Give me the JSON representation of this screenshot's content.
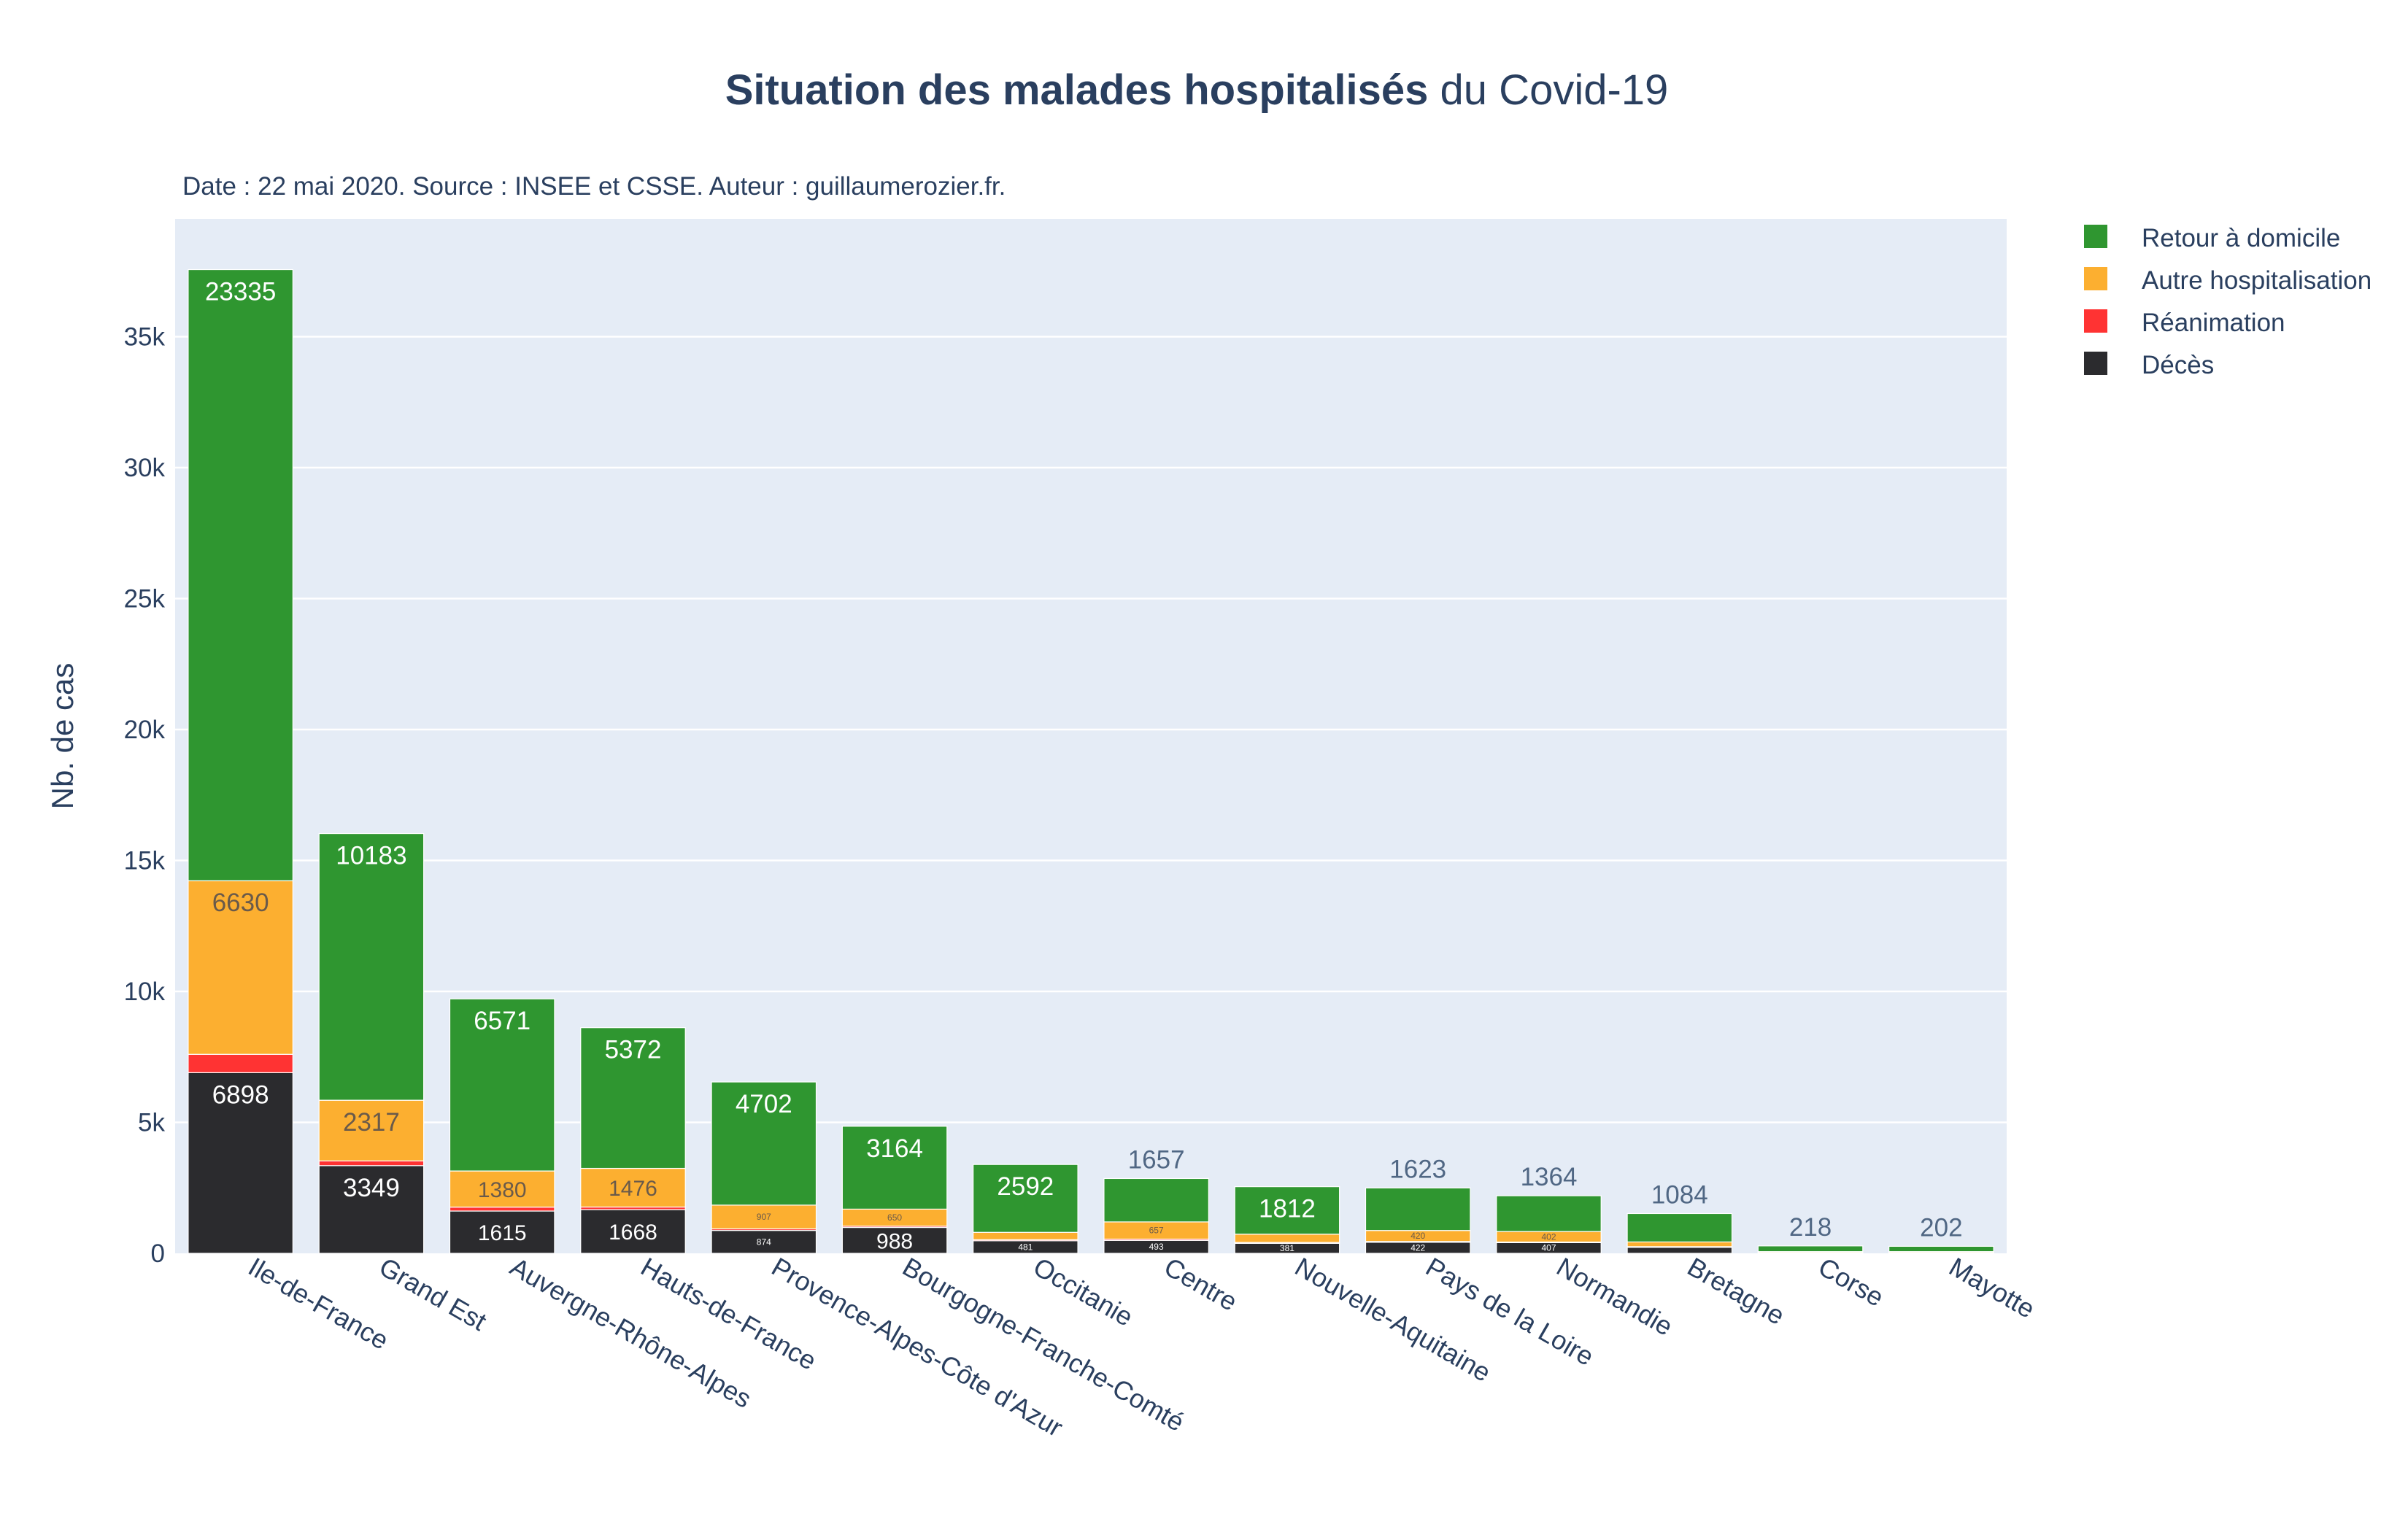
{
  "chart_data": {
    "type": "bar",
    "stacked": true,
    "title_bold": "Situation des malades hospitalisés",
    "title_rest": " du Covid-19",
    "subtitle": "Date : 22 mai 2020. Source : INSEE et CSSE. Auteur : guillaumerozier.fr.",
    "ylabel": "Nb. de cas",
    "xlabel": "",
    "ylim": [
      0,
      39500
    ],
    "yticks": [
      0,
      5000,
      10000,
      15000,
      20000,
      25000,
      30000,
      35000
    ],
    "ytick_labels": [
      "0",
      "5k",
      "10k",
      "15k",
      "20k",
      "25k",
      "30k",
      "35k"
    ],
    "grid": true,
    "legend_position": "top-right",
    "categories": [
      "Ile-de-France",
      "Grand Est",
      "Auvergne-Rhône-Alpes",
      "Hauts-de-France",
      "Provence-Alpes-Côte d'Azur",
      "Bourgogne-Franche-Comté",
      "Occitanie",
      "Centre",
      "Nouvelle-Aquitaine",
      "Pays de la Loire",
      "Normandie",
      "Bretagne",
      "Corse",
      "Mayotte"
    ],
    "series": [
      {
        "name": "Décès",
        "color": "#2b2b2e",
        "values": [
          6898,
          3349,
          1615,
          1668,
          874,
          988,
          481,
          493,
          381,
          422,
          407,
          230,
          20,
          20
        ]
      },
      {
        "name": "Réanimation",
        "color": "#ff3333",
        "values": [
          700,
          180,
          150,
          100,
          60,
          50,
          40,
          50,
          35,
          30,
          25,
          25,
          5,
          5
        ]
      },
      {
        "name": "Autre hospitalisation",
        "color": "#fcaf30",
        "values": [
          6630,
          2317,
          1380,
          1476,
          907,
          650,
          280,
          657,
          317,
          420,
          402,
          180,
          40,
          40
        ]
      },
      {
        "name": "Retour à domicile",
        "color": "#2f9630",
        "values": [
          23335,
          10183,
          6571,
          5372,
          4702,
          3164,
          2592,
          1657,
          1812,
          1623,
          1364,
          1084,
          218,
          202
        ]
      }
    ],
    "legend_order": [
      "Retour à domicile",
      "Autre hospitalisation",
      "Réanimation",
      "Décès"
    ]
  }
}
